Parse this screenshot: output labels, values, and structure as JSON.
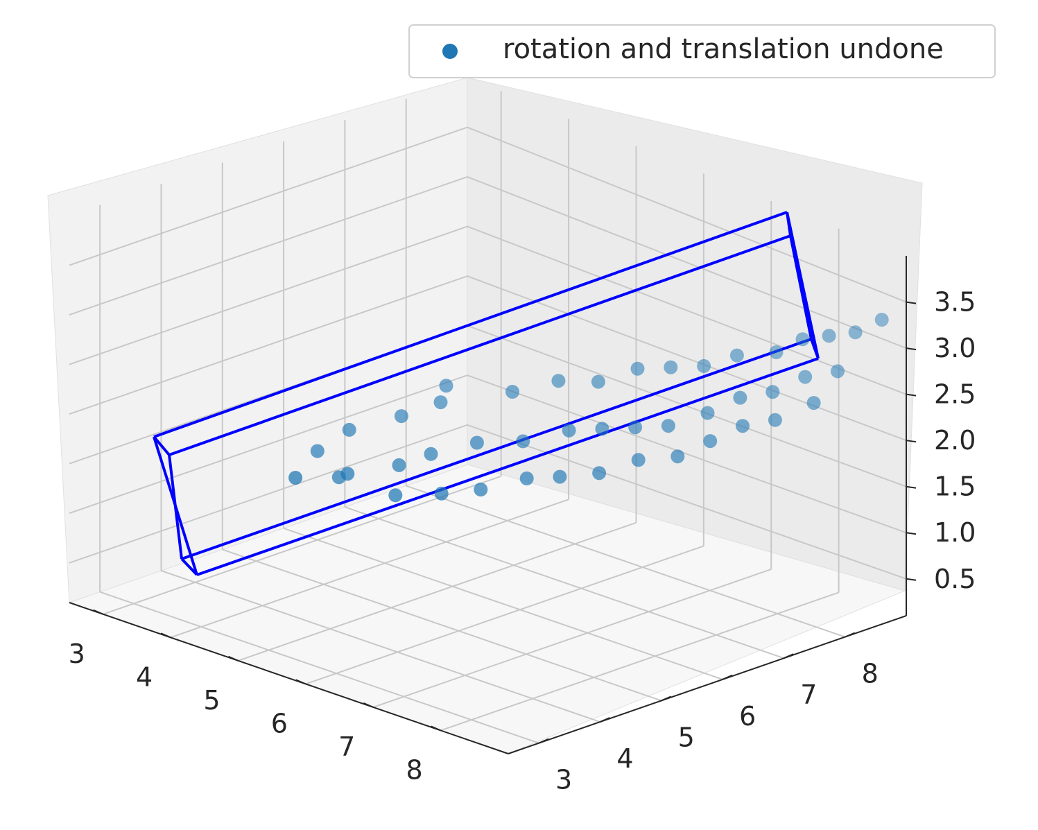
{
  "chart_data": {
    "type": "scatter",
    "title": "",
    "xlabel": "",
    "ylabel": "",
    "zlabel": "",
    "xlim": [
      2.5,
      9
    ],
    "ylim": [
      2.5,
      9
    ],
    "zlim": [
      0.1,
      4
    ],
    "grid": true,
    "view": {
      "elevation": 20,
      "azimuth": -40
    },
    "x_ticks": [
      "3",
      "4",
      "5",
      "6",
      "7",
      "8"
    ],
    "y_ticks": [
      "3",
      "4",
      "5",
      "6",
      "7",
      "8"
    ],
    "z_ticks": [
      "0.5",
      "1.0",
      "1.5",
      "2.0",
      "2.5",
      "3.0",
      "3.5"
    ],
    "legend": {
      "position": "top-right",
      "entries": [
        {
          "label": "rotation and translation undone",
          "color": "#1f77b4"
        }
      ]
    },
    "series": [
      {
        "name": "rotation and translation undone",
        "color": "#1f77b4",
        "marker": "circle",
        "points": [
          [
            3.0,
            6.0,
            1.0
          ],
          [
            3.2,
            6.3,
            1.2
          ],
          [
            3.5,
            5.8,
            0.9
          ],
          [
            3.4,
            5.2,
            1.0
          ],
          [
            3.7,
            6.6,
            1.4
          ],
          [
            3.9,
            5.5,
            1.1
          ],
          [
            4.1,
            6.8,
            1.6
          ],
          [
            4.3,
            5.9,
            1.2
          ],
          [
            4.0,
            7.0,
            1.7
          ],
          [
            4.5,
            6.2,
            1.3
          ],
          [
            4.7,
            5.4,
            1.1
          ],
          [
            4.8,
            7.2,
            1.8
          ],
          [
            5.0,
            6.4,
            1.5
          ],
          [
            5.2,
            5.6,
            1.2
          ],
          [
            5.3,
            7.4,
            2.0
          ],
          [
            5.5,
            6.6,
            1.6
          ],
          [
            5.6,
            5.8,
            1.3
          ],
          [
            5.8,
            7.5,
            2.1
          ],
          [
            6.0,
            6.8,
            1.8
          ],
          [
            6.1,
            6.0,
            1.5
          ],
          [
            6.2,
            7.7,
            2.3
          ],
          [
            6.4,
            6.9,
            1.9
          ],
          [
            6.5,
            6.1,
            1.6
          ],
          [
            6.6,
            7.8,
            2.4
          ],
          [
            6.8,
            7.0,
            2.0
          ],
          [
            6.9,
            6.3,
            1.7
          ],
          [
            7.0,
            7.9,
            2.5
          ],
          [
            7.2,
            7.1,
            2.1
          ],
          [
            7.3,
            6.5,
            1.9
          ],
          [
            7.4,
            8.0,
            2.7
          ],
          [
            7.6,
            7.3,
            2.3
          ],
          [
            7.7,
            6.7,
            2.0
          ],
          [
            7.8,
            8.2,
            2.8
          ],
          [
            7.9,
            7.5,
            2.5
          ],
          [
            8.0,
            6.9,
            2.2
          ],
          [
            8.1,
            8.3,
            3.0
          ],
          [
            8.2,
            7.7,
            2.6
          ],
          [
            8.3,
            7.1,
            2.4
          ],
          [
            8.4,
            8.4,
            3.1
          ],
          [
            8.5,
            7.9,
            2.8
          ],
          [
            8.6,
            7.3,
            2.5
          ],
          [
            8.7,
            8.5,
            3.2
          ],
          [
            8.8,
            8.1,
            2.9
          ],
          [
            8.9,
            7.6,
            2.7
          ],
          [
            9.0,
            8.6,
            3.4
          ]
        ]
      }
    ]
  }
}
